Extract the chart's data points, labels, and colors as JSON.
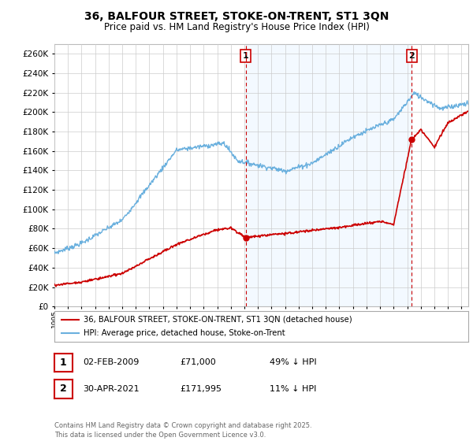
{
  "title": "36, BALFOUR STREET, STOKE-ON-TRENT, ST1 3QN",
  "subtitle": "Price paid vs. HM Land Registry's House Price Index (HPI)",
  "ylim": [
    0,
    270000
  ],
  "yticks": [
    0,
    20000,
    40000,
    60000,
    80000,
    100000,
    120000,
    140000,
    160000,
    180000,
    200000,
    220000,
    240000,
    260000
  ],
  "hpi_color": "#6ab0de",
  "price_color": "#cc0000",
  "dashed_color": "#cc0000",
  "shade_color": "#ddeeff",
  "annotation1_date": "02-FEB-2009",
  "annotation1_price": "£71,000",
  "annotation1_hpi": "49% ↓ HPI",
  "annotation1_year": 2009.09,
  "annotation1_value": 71000,
  "annotation2_date": "30-APR-2021",
  "annotation2_price": "£171,995",
  "annotation2_hpi": "11% ↓ HPI",
  "annotation2_year": 2021.33,
  "annotation2_value": 171995,
  "legend_label1": "36, BALFOUR STREET, STOKE-ON-TRENT, ST1 3QN (detached house)",
  "legend_label2": "HPI: Average price, detached house, Stoke-on-Trent",
  "footer": "Contains HM Land Registry data © Crown copyright and database right 2025.\nThis data is licensed under the Open Government Licence v3.0.",
  "background_color": "#ffffff",
  "grid_color": "#cccccc",
  "xstart": 1995,
  "xend": 2025.5
}
